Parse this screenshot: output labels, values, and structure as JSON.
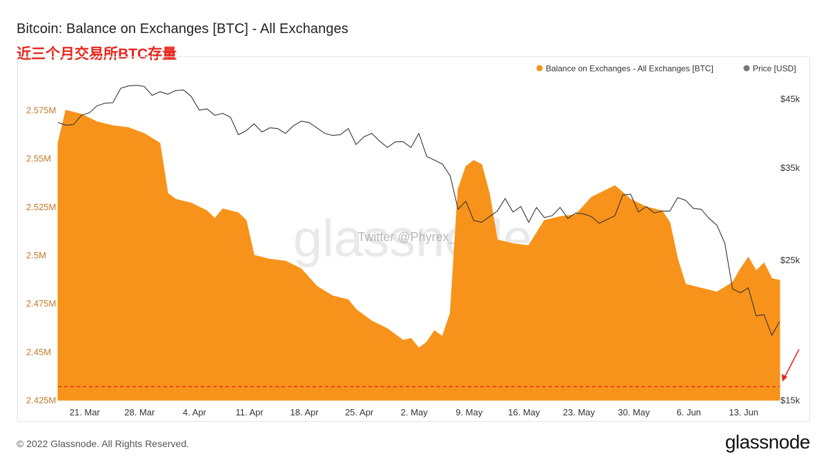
{
  "header": {
    "title": "Bitcoin: Balance on Exchanges [BTC] - All Exchanges",
    "subtitle": "近三个月交易所BTC存量"
  },
  "footer": {
    "copyright": "© 2022 Glassnode. All Rights Reserved.",
    "brand": "glassnode"
  },
  "watermark": {
    "logo": "glassnode",
    "handle": "Twitter @Phyrex_Ni"
  },
  "colors": {
    "balance": "#f7931a",
    "price": "#333333",
    "reference_line": "#e8251b",
    "annotation_arrow": "#e8251b"
  },
  "chart_data": {
    "type": "area",
    "legend_position": "top-right",
    "grid": false,
    "x_ticks": [
      "21. Mar",
      "28. Mar",
      "4. Apr",
      "11. Apr",
      "18. Apr",
      "25. Apr",
      "2. May",
      "9. May",
      "16. May",
      "23. May",
      "30. May",
      "6. Jun",
      "13. Jun"
    ],
    "y_left": {
      "ticks": [
        "2.425M",
        "2.45M",
        "2.475M",
        "2.5M",
        "2.525M",
        "2.55M",
        "2.575M"
      ],
      "range": [
        2425000,
        2590000
      ]
    },
    "y_right": {
      "ticks": [
        "$15k",
        "$25k",
        "$35k",
        "$45k"
      ],
      "range": [
        15000,
        48000
      ],
      "scale": "log"
    },
    "reference_line": {
      "value": 2432000,
      "style": "dashed"
    },
    "series": [
      {
        "name": "Balance on Exchanges - All Exchanges [BTC]",
        "axis": "left",
        "kind": "area",
        "points": [
          [
            "2022-03-19",
            2558000
          ],
          [
            "2022-03-20",
            2575000
          ],
          [
            "2022-03-22",
            2573000
          ],
          [
            "2022-03-24",
            2569000
          ],
          [
            "2022-03-26",
            2567000
          ],
          [
            "2022-03-28",
            2566000
          ],
          [
            "2022-03-30",
            2563000
          ],
          [
            "2022-04-01",
            2558000
          ],
          [
            "2022-04-02",
            2532000
          ],
          [
            "2022-04-03",
            2529000
          ],
          [
            "2022-04-05",
            2527000
          ],
          [
            "2022-04-07",
            2523000
          ],
          [
            "2022-04-08",
            2519000
          ],
          [
            "2022-04-09",
            2524000
          ],
          [
            "2022-04-11",
            2522000
          ],
          [
            "2022-04-12",
            2518000
          ],
          [
            "2022-04-13",
            2500000
          ],
          [
            "2022-04-15",
            2498000
          ],
          [
            "2022-04-17",
            2497000
          ],
          [
            "2022-04-19",
            2493000
          ],
          [
            "2022-04-21",
            2484000
          ],
          [
            "2022-04-23",
            2479000
          ],
          [
            "2022-04-25",
            2477000
          ],
          [
            "2022-04-26",
            2472000
          ],
          [
            "2022-04-28",
            2466000
          ],
          [
            "2022-04-30",
            2462000
          ],
          [
            "2022-05-02",
            2456000
          ],
          [
            "2022-05-03",
            2457000
          ],
          [
            "2022-05-04",
            2452000
          ],
          [
            "2022-05-05",
            2455000
          ],
          [
            "2022-05-06",
            2461000
          ],
          [
            "2022-05-07",
            2458000
          ],
          [
            "2022-05-08",
            2470000
          ],
          [
            "2022-05-09",
            2534000
          ],
          [
            "2022-05-10",
            2546000
          ],
          [
            "2022-05-11",
            2549000
          ],
          [
            "2022-05-12",
            2547000
          ],
          [
            "2022-05-13",
            2532000
          ],
          [
            "2022-05-14",
            2508000
          ],
          [
            "2022-05-16",
            2506000
          ],
          [
            "2022-05-18",
            2505000
          ],
          [
            "2022-05-20",
            2518000
          ],
          [
            "2022-05-22",
            2520000
          ],
          [
            "2022-05-24",
            2521000
          ],
          [
            "2022-05-26",
            2530000
          ],
          [
            "2022-05-28",
            2534000
          ],
          [
            "2022-05-29",
            2536000
          ],
          [
            "2022-05-31",
            2529000
          ],
          [
            "2022-06-02",
            2525000
          ],
          [
            "2022-06-04",
            2523000
          ],
          [
            "2022-06-05",
            2517000
          ],
          [
            "2022-06-06",
            2498000
          ],
          [
            "2022-06-07",
            2485000
          ],
          [
            "2022-06-09",
            2483000
          ],
          [
            "2022-06-11",
            2481000
          ],
          [
            "2022-06-13",
            2486000
          ],
          [
            "2022-06-14",
            2493000
          ],
          [
            "2022-06-15",
            2499000
          ],
          [
            "2022-06-16",
            2492000
          ],
          [
            "2022-06-17",
            2496000
          ],
          [
            "2022-06-18",
            2488000
          ],
          [
            "2022-06-19",
            2487000
          ]
        ]
      },
      {
        "name": "Price [USD]",
        "axis": "right",
        "kind": "line",
        "points": [
          [
            "2022-03-19",
            41300
          ],
          [
            "2022-03-20",
            40900
          ],
          [
            "2022-03-21",
            41000
          ],
          [
            "2022-03-22",
            42400
          ],
          [
            "2022-03-23",
            42800
          ],
          [
            "2022-03-24",
            43900
          ],
          [
            "2022-03-25",
            44300
          ],
          [
            "2022-03-26",
            44400
          ],
          [
            "2022-03-27",
            46800
          ],
          [
            "2022-03-28",
            47200
          ],
          [
            "2022-03-29",
            47300
          ],
          [
            "2022-03-30",
            47100
          ],
          [
            "2022-03-31",
            45600
          ],
          [
            "2022-04-01",
            46200
          ],
          [
            "2022-04-02",
            45800
          ],
          [
            "2022-04-03",
            46400
          ],
          [
            "2022-04-04",
            46500
          ],
          [
            "2022-04-05",
            45400
          ],
          [
            "2022-04-06",
            43200
          ],
          [
            "2022-04-07",
            43400
          ],
          [
            "2022-04-08",
            42400
          ],
          [
            "2022-04-09",
            42700
          ],
          [
            "2022-04-10",
            42100
          ],
          [
            "2022-04-11",
            39500
          ],
          [
            "2022-04-12",
            40100
          ],
          [
            "2022-04-13",
            41100
          ],
          [
            "2022-04-14",
            39900
          ],
          [
            "2022-04-15",
            40500
          ],
          [
            "2022-04-16",
            40400
          ],
          [
            "2022-04-17",
            39700
          ],
          [
            "2022-04-18",
            40800
          ],
          [
            "2022-04-19",
            41500
          ],
          [
            "2022-04-20",
            41300
          ],
          [
            "2022-04-21",
            40500
          ],
          [
            "2022-04-22",
            39700
          ],
          [
            "2022-04-23",
            39400
          ],
          [
            "2022-04-24",
            39500
          ],
          [
            "2022-04-25",
            40400
          ],
          [
            "2022-04-26",
            38100
          ],
          [
            "2022-04-27",
            39200
          ],
          [
            "2022-04-28",
            39700
          ],
          [
            "2022-04-29",
            38600
          ],
          [
            "2022-04-30",
            37700
          ],
          [
            "2022-05-01",
            38500
          ],
          [
            "2022-05-02",
            38500
          ],
          [
            "2022-05-03",
            37700
          ],
          [
            "2022-05-04",
            39700
          ],
          [
            "2022-05-05",
            36500
          ],
          [
            "2022-05-06",
            36000
          ],
          [
            "2022-05-07",
            35500
          ],
          [
            "2022-05-08",
            34000
          ],
          [
            "2022-05-09",
            30100
          ],
          [
            "2022-05-10",
            31000
          ],
          [
            "2022-05-11",
            28900
          ],
          [
            "2022-05-12",
            28700
          ],
          [
            "2022-05-13",
            29300
          ],
          [
            "2022-05-14",
            29900
          ],
          [
            "2022-05-15",
            31300
          ],
          [
            "2022-05-16",
            29800
          ],
          [
            "2022-05-17",
            30400
          ],
          [
            "2022-05-18",
            28700
          ],
          [
            "2022-05-19",
            30300
          ],
          [
            "2022-05-20",
            29200
          ],
          [
            "2022-05-21",
            29400
          ],
          [
            "2022-05-22",
            30300
          ],
          [
            "2022-05-23",
            29100
          ],
          [
            "2022-05-24",
            29700
          ],
          [
            "2022-05-25",
            29600
          ],
          [
            "2022-05-26",
            29300
          ],
          [
            "2022-05-27",
            28600
          ],
          [
            "2022-05-28",
            29000
          ],
          [
            "2022-05-29",
            29400
          ],
          [
            "2022-05-30",
            31700
          ],
          [
            "2022-05-31",
            31800
          ],
          [
            "2022-06-01",
            29800
          ],
          [
            "2022-06-02",
            30400
          ],
          [
            "2022-06-03",
            29700
          ],
          [
            "2022-06-04",
            29900
          ],
          [
            "2022-06-05",
            29900
          ],
          [
            "2022-06-06",
            31400
          ],
          [
            "2022-06-07",
            31100
          ],
          [
            "2022-06-08",
            30200
          ],
          [
            "2022-06-09",
            30100
          ],
          [
            "2022-06-10",
            29100
          ],
          [
            "2022-06-11",
            28400
          ],
          [
            "2022-06-12",
            26600
          ],
          [
            "2022-06-13",
            22500
          ],
          [
            "2022-06-14",
            22200
          ],
          [
            "2022-06-15",
            22600
          ],
          [
            "2022-06-16",
            20400
          ],
          [
            "2022-06-17",
            20500
          ],
          [
            "2022-06-18",
            19000
          ],
          [
            "2022-06-19",
            20000
          ]
        ]
      }
    ]
  }
}
